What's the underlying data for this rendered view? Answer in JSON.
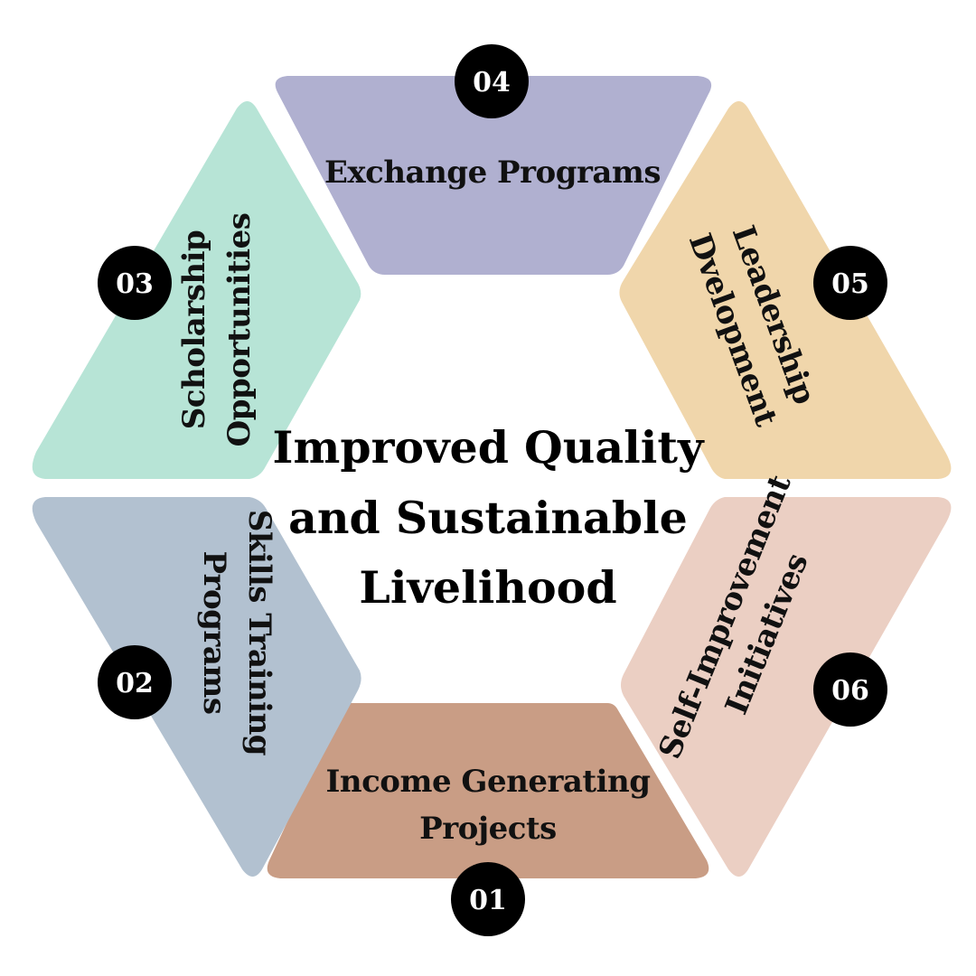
{
  "center": {
    "lines": [
      "Improved Quality",
      "and Sustainable",
      "Livelihood"
    ]
  },
  "segments": [
    {
      "number": "01",
      "lines": [
        "Income Generating",
        "Projects"
      ],
      "color": "#c99d85"
    },
    {
      "number": "02",
      "lines": [
        "Skills Training",
        "Programs"
      ],
      "color": "#b2c1d0"
    },
    {
      "number": "03",
      "lines": [
        "Scholarship",
        "Opportunities"
      ],
      "color": "#b7e4d6"
    },
    {
      "number": "04",
      "lines": [
        "Exchange Programs"
      ],
      "color": "#b0b0d0"
    },
    {
      "number": "05",
      "lines": [
        "Leadership",
        "Dvelopment"
      ],
      "color": "#f0d6ab"
    },
    {
      "number": "06",
      "lines": [
        "Self-Improvement",
        "Initiatives"
      ],
      "color": "#ebcfc3"
    }
  ],
  "badge_color": "#000000"
}
